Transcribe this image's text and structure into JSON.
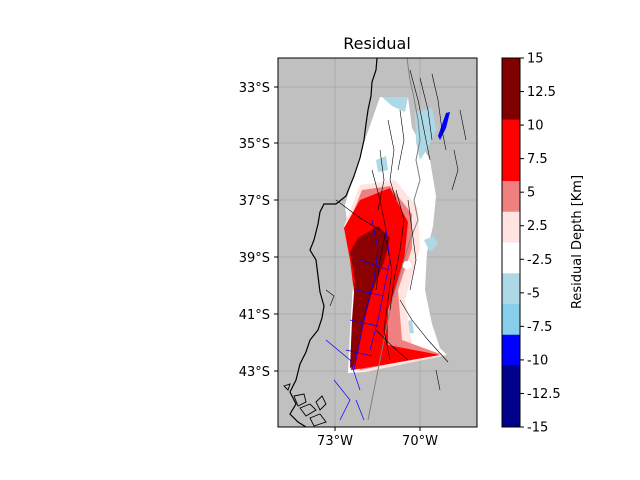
{
  "title": "Residual",
  "map": {
    "lat_ticks": [
      "33°S",
      "35°S",
      "37°S",
      "39°S",
      "41°S",
      "43°S"
    ],
    "lon_ticks": [
      "73°W",
      "70°W"
    ],
    "background_color": "#c0c0c0",
    "coast_color": "#000000",
    "fault_color": "#000000",
    "slab_contour_color": "#0000ff"
  },
  "colorbar": {
    "label": "Residual Depth [Km]",
    "tick_labels": [
      "15",
      "12.5",
      "10",
      "7.5",
      "5",
      "2.5",
      "-2.5",
      "-5",
      "-7.5",
      "-10",
      "-12.5",
      "-15"
    ],
    "colors_top_to_bottom": [
      "#800000",
      "#800000",
      "#ff0000",
      "#ff0000",
      "#f08080",
      "#ffe4e1",
      "#ffffff",
      "#add8e6",
      "#87ceeb",
      "#0000ff",
      "#00008b",
      "#00008b"
    ]
  }
}
